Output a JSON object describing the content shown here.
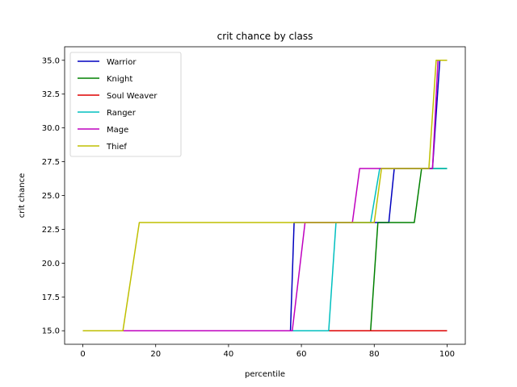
{
  "chart_data": {
    "type": "line",
    "title": "crit chance by class",
    "xlabel": "percentile",
    "ylabel": "crit chance",
    "xlim": [
      -5,
      105
    ],
    "ylim": [
      14.0,
      36.0
    ],
    "xticks": [
      0,
      20,
      40,
      60,
      80,
      100
    ],
    "xtick_labels": [
      "0",
      "20",
      "40",
      "60",
      "80",
      "100"
    ],
    "yticks": [
      15.0,
      17.5,
      20.0,
      22.5,
      25.0,
      27.5,
      30.0,
      32.5,
      35.0
    ],
    "ytick_labels": [
      "15.0",
      "17.5",
      "20.0",
      "22.5",
      "25.0",
      "27.5",
      "30.0",
      "32.5",
      "35.0"
    ],
    "grid": false,
    "legend_position": "top-left",
    "series": [
      {
        "name": "Warrior",
        "color": "#0000bf",
        "points": [
          [
            0,
            15
          ],
          [
            57,
            15
          ],
          [
            58,
            23
          ],
          [
            84,
            23
          ],
          [
            85.5,
            27
          ],
          [
            96,
            27
          ],
          [
            98,
            35
          ],
          [
            100,
            35
          ]
        ]
      },
      {
        "name": "Knight",
        "color": "#008000",
        "points": [
          [
            0,
            15
          ],
          [
            79,
            15
          ],
          [
            81,
            23
          ],
          [
            91,
            23
          ],
          [
            93,
            27
          ],
          [
            100,
            27
          ]
        ]
      },
      {
        "name": "Soul Weaver",
        "color": "#dd0000",
        "points": [
          [
            0,
            15
          ],
          [
            100,
            15
          ]
        ]
      },
      {
        "name": "Ranger",
        "color": "#00bfbf",
        "points": [
          [
            0,
            15
          ],
          [
            67.5,
            15
          ],
          [
            69.5,
            23
          ],
          [
            79,
            23
          ],
          [
            81.5,
            27
          ],
          [
            100,
            27
          ]
        ]
      },
      {
        "name": "Mage",
        "color": "#bf00bf",
        "points": [
          [
            0,
            15
          ],
          [
            57.5,
            15
          ],
          [
            61,
            23
          ],
          [
            74,
            23
          ],
          [
            76,
            27
          ],
          [
            82,
            27
          ],
          [
            96,
            27
          ],
          [
            97.5,
            35
          ],
          [
            100,
            35
          ]
        ]
      },
      {
        "name": "Thief",
        "color": "#bfbf00",
        "points": [
          [
            0,
            15
          ],
          [
            11,
            15
          ],
          [
            15.5,
            23
          ],
          [
            80,
            23
          ],
          [
            82,
            27
          ],
          [
            95,
            27
          ],
          [
            97,
            35
          ],
          [
            100,
            35
          ]
        ]
      }
    ]
  }
}
